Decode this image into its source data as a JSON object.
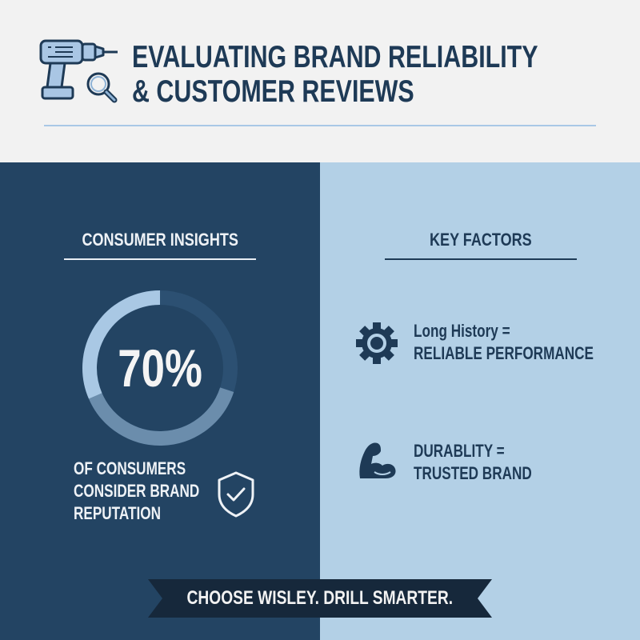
{
  "header": {
    "title_line1": "EVALUATING BRAND RELIABILITY",
    "title_line2": "& CUSTOMER REVIEWS",
    "icon": "drill-with-magnifier-icon"
  },
  "left_panel": {
    "heading": "CONSUMER INSIGHTS",
    "stat": {
      "value_label": "70%",
      "percent": 70
    },
    "caption_lines": [
      "OF CONSUMERS",
      "CONSIDER BRAND",
      "REPUTATION"
    ],
    "icon": "shield-check-icon"
  },
  "right_panel": {
    "heading": "KEY FACTORS",
    "factors": [
      {
        "icon": "gear-icon",
        "line1": "Long History =",
        "line2": "RELIABLE PERFORMANCE"
      },
      {
        "icon": "flexed-arm-icon",
        "line1": "DURABLITY =",
        "line2": "TRUSTED BRAND"
      }
    ]
  },
  "banner": {
    "text": "CHOOSE WISLEY. DRILL SMARTER."
  },
  "colors": {
    "dark_navy": "#234463",
    "light_blue": "#b3d0e6",
    "title": "#1e3a56",
    "banner": "#16283b"
  }
}
